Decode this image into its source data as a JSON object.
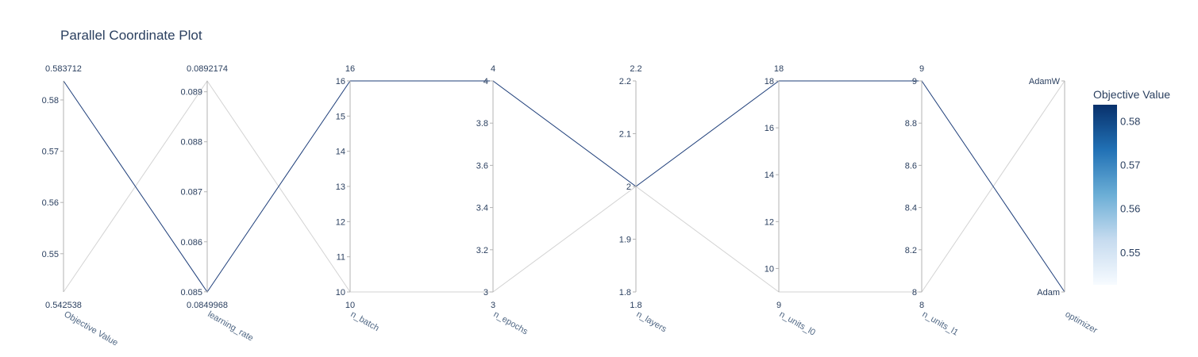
{
  "chart_data": {
    "type": "parallel_coordinates",
    "title": "Parallel Coordinate Plot",
    "dimensions": [
      {
        "label": "Objective Value",
        "range_min_label": "0.542538",
        "range_max_label": "0.583712",
        "range": [
          0.542538,
          0.583712
        ],
        "ticks": [
          {
            "v": 0.55,
            "t": "0.55"
          },
          {
            "v": 0.56,
            "t": "0.56"
          },
          {
            "v": 0.57,
            "t": "0.57"
          },
          {
            "v": 0.58,
            "t": "0.58"
          }
        ]
      },
      {
        "label": "learning_rate",
        "range_min_label": "0.0849968",
        "range_max_label": "0.0892174",
        "range": [
          0.0849968,
          0.0892174
        ],
        "ticks": [
          {
            "v": 0.085,
            "t": "0.085"
          },
          {
            "v": 0.086,
            "t": "0.086"
          },
          {
            "v": 0.087,
            "t": "0.087"
          },
          {
            "v": 0.088,
            "t": "0.088"
          },
          {
            "v": 0.089,
            "t": "0.089"
          }
        ]
      },
      {
        "label": "n_batch",
        "range_min_label": "10",
        "range_max_label": "16",
        "range": [
          10,
          16
        ],
        "ticks": [
          {
            "v": 10,
            "t": "10"
          },
          {
            "v": 11,
            "t": "11"
          },
          {
            "v": 12,
            "t": "12"
          },
          {
            "v": 13,
            "t": "13"
          },
          {
            "v": 14,
            "t": "14"
          },
          {
            "v": 15,
            "t": "15"
          },
          {
            "v": 16,
            "t": "16"
          }
        ]
      },
      {
        "label": "n_epochs",
        "range_min_label": "3",
        "range_max_label": "4",
        "range": [
          3,
          4
        ],
        "ticks": [
          {
            "v": 3,
            "t": "3"
          },
          {
            "v": 3.2,
            "t": "3.2"
          },
          {
            "v": 3.4,
            "t": "3.4"
          },
          {
            "v": 3.6,
            "t": "3.6"
          },
          {
            "v": 3.8,
            "t": "3.8"
          },
          {
            "v": 4,
            "t": "4"
          }
        ]
      },
      {
        "label": "n_layers",
        "range_min_label": "1.8",
        "range_max_label": "2.2",
        "range": [
          1.8,
          2.2
        ],
        "ticks": [
          {
            "v": 1.8,
            "t": "1.8"
          },
          {
            "v": 1.9,
            "t": "1.9"
          },
          {
            "v": 2,
            "t": "2"
          },
          {
            "v": 2.1,
            "t": "2.1"
          },
          {
            "v": 2.2,
            "t": "2.2"
          }
        ]
      },
      {
        "label": "n_units_l0",
        "range_min_label": "9",
        "range_max_label": "18",
        "range": [
          9,
          18
        ],
        "ticks": [
          {
            "v": 10,
            "t": "10"
          },
          {
            "v": 12,
            "t": "12"
          },
          {
            "v": 14,
            "t": "14"
          },
          {
            "v": 16,
            "t": "16"
          },
          {
            "v": 18,
            "t": "18"
          }
        ]
      },
      {
        "label": "n_units_l1",
        "range_min_label": "8",
        "range_max_label": "9",
        "range": [
          8,
          9
        ],
        "ticks": [
          {
            "v": 8,
            "t": "8"
          },
          {
            "v": 8.2,
            "t": "8.2"
          },
          {
            "v": 8.4,
            "t": "8.4"
          },
          {
            "v": 8.6,
            "t": "8.6"
          },
          {
            "v": 8.8,
            "t": "8.8"
          },
          {
            "v": 9,
            "t": "9"
          }
        ]
      },
      {
        "label": "optimizer",
        "range_min_label": "",
        "range_max_label": "",
        "range": [
          0,
          1
        ],
        "ticks": [
          {
            "v": 0,
            "t": "Adam"
          },
          {
            "v": 1,
            "t": "AdamW"
          }
        ]
      }
    ],
    "series": [
      {
        "objective": 0.583712,
        "values": [
          0.583712,
          0.0849968,
          16,
          4,
          2,
          18,
          9,
          0
        ],
        "color": "#1f3f7a"
      },
      {
        "objective": 0.542538,
        "values": [
          0.542538,
          0.0892174,
          10,
          3,
          2,
          9,
          8,
          1
        ],
        "color": "#d3d3d3"
      }
    ],
    "colorbar": {
      "title": "Objective Value",
      "range": [
        0.542538,
        0.583712
      ],
      "ticks": [
        {
          "v": 0.55,
          "t": "0.55"
        },
        {
          "v": 0.56,
          "t": "0.56"
        },
        {
          "v": 0.57,
          "t": "0.57"
        },
        {
          "v": 0.58,
          "t": "0.58"
        }
      ],
      "colors": [
        "#f7fbff",
        "#c6dbef",
        "#6baed6",
        "#2171b5",
        "#08306b"
      ]
    }
  }
}
